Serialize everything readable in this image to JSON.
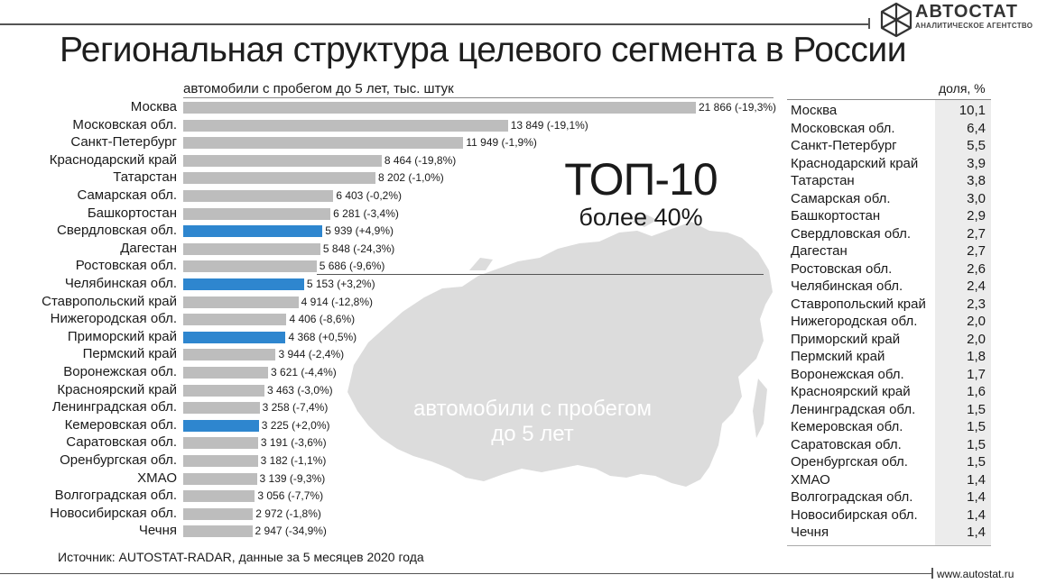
{
  "header": {
    "title": "Региональная структура целевого сегмента в России",
    "logo_name": "АВТОСТАТ",
    "logo_tagline": "АНАЛИТИЧЕСКОЕ АГЕНТСТВО"
  },
  "highlight": {
    "top_label": "ТОП-10",
    "top_sub": "более 40%",
    "map_text_line1": "автомобили с пробегом",
    "map_text_line2": "до 5 лет"
  },
  "share_table": {
    "header": "доля, %"
  },
  "footer": {
    "source": "Источник: AUTOSTAT-RADAR, данные за 5 месяцев 2020 года",
    "website": "www.autostat.ru"
  },
  "colors": {
    "bar_default": "#bdbdbd",
    "bar_highlight": "#2e86cf",
    "map": "#dcdcdc"
  },
  "chart_data": {
    "type": "bar",
    "orientation": "horizontal",
    "subtitle": "автомобили с пробегом до 5 лет, тыс. штук",
    "categories": [
      "Москва",
      "Московская обл.",
      "Санкт-Петербург",
      "Краснодарский край",
      "Татарстан",
      "Самарская обл.",
      "Башкортостан",
      "Свердловская обл.",
      "Дагестан",
      "Ростовская обл.",
      "Челябинская обл.",
      "Ставропольский край",
      "Нижегородская обл.",
      "Приморский край",
      "Пермский край",
      "Воронежская обл.",
      "Красноярский край",
      "Ленинградская обл.",
      "Кемеровская обл.",
      "Саратовская обл.",
      "Оренбургская обл.",
      "ХМАО",
      "Волгоградская обл.",
      "Новосибирская обл.",
      "Чечня"
    ],
    "values": [
      21866,
      13849,
      11949,
      8464,
      8202,
      6403,
      6281,
      5939,
      5848,
      5686,
      5153,
      4914,
      4406,
      4368,
      3944,
      3621,
      3463,
      3258,
      3225,
      3191,
      3182,
      3139,
      3056,
      2972,
      2947
    ],
    "value_labels": [
      "21 866 (-19,3%)",
      "13 849 (-19,1%)",
      "11 949 (-1,9%)",
      "8 464 (-19,8%)",
      "8 202 (-1,0%)",
      "6 403 (-0,2%)",
      "6 281 (-3,4%)",
      "5 939 (+4,9%)",
      "5 848 (-24,3%)",
      "5 686 (-9,6%)",
      "5 153 (+3,2%)",
      "4 914 (-12,8%)",
      "4 406 (-8,6%)",
      "4 368 (+0,5%)",
      "3 944 (-2,4%)",
      "3 621 (-4,4%)",
      "3 463 (-3,0%)",
      "3 258 (-7,4%)",
      "3 225 (+2,0%)",
      "3 191 (-3,6%)",
      "3 182 (-1,1%)",
      "3 139 (-9,3%)",
      "3 056 (-7,7%)",
      "2 972 (-1,8%)",
      "2 947 (-34,9%)"
    ],
    "highlighted": [
      "Свердловская обл.",
      "Челябинская обл.",
      "Приморский край",
      "Кемеровская обл."
    ],
    "share_percent": [
      "10,1",
      "6,4",
      "5,5",
      "3,9",
      "3,8",
      "3,0",
      "2,9",
      "2,7",
      "2,7",
      "2,6",
      "2,4",
      "2,3",
      "2,0",
      "2,0",
      "1,8",
      "1,7",
      "1,6",
      "1,5",
      "1,5",
      "1,5",
      "1,5",
      "1,4",
      "1,4",
      "1,4",
      "1,4"
    ]
  }
}
